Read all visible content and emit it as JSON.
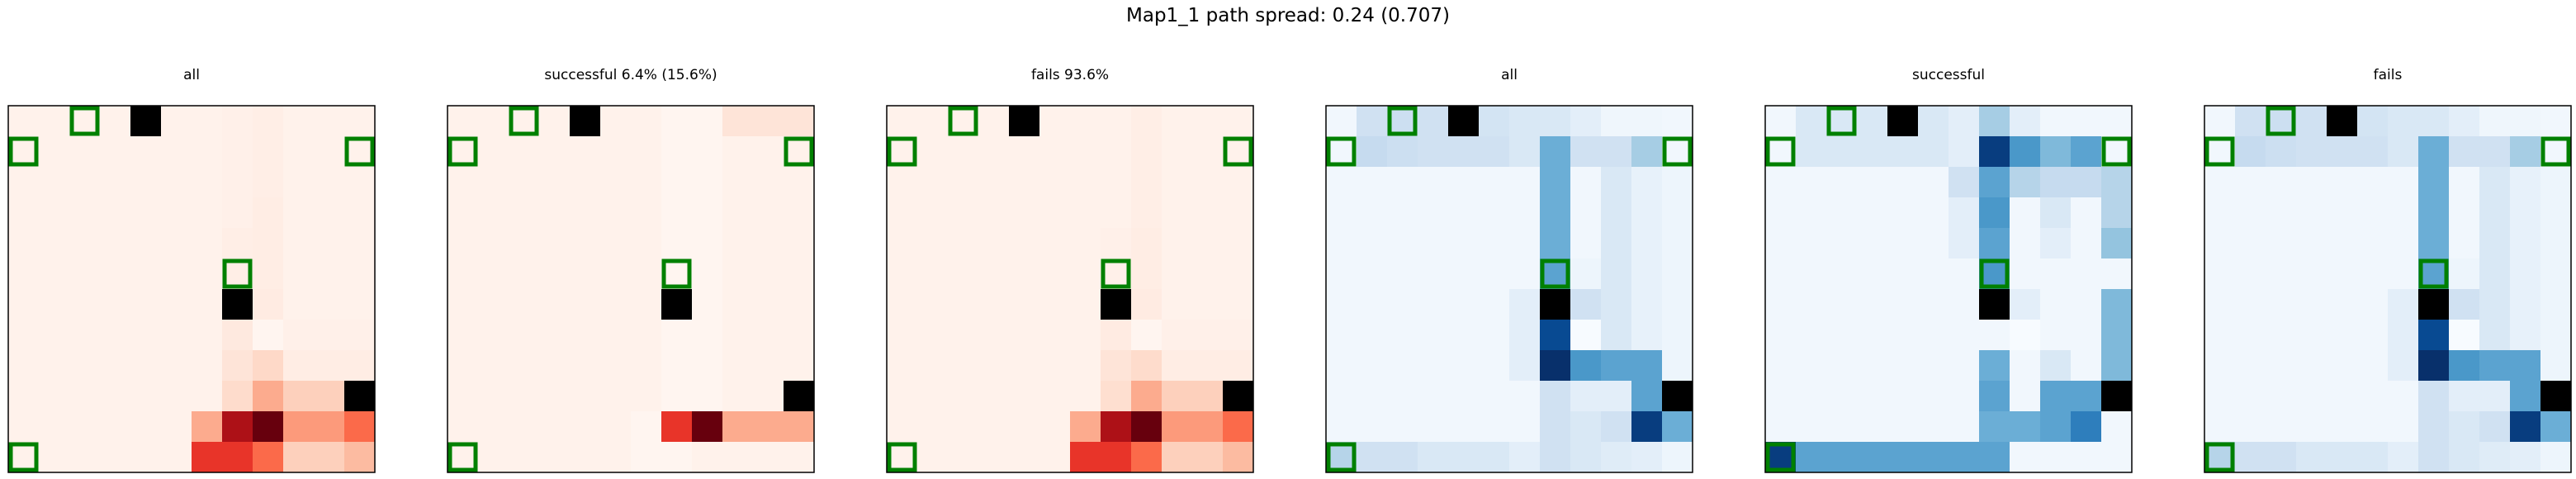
{
  "suptitle": "Map1_1 path spread: 0.24 (0.707)",
  "chart_data": {
    "type": "heatmap",
    "grid_size": [
      12,
      12
    ],
    "colors": {
      "wall": "#000000",
      "marker_edge": "#008000",
      "frame": "#000000"
    },
    "walls": [
      [
        0,
        4
      ],
      [
        6,
        7
      ],
      [
        9,
        11
      ]
    ],
    "markers": [
      [
        1,
        0
      ],
      [
        0,
        2
      ],
      [
        11,
        0
      ],
      [
        1,
        11
      ],
      [
        5,
        7
      ]
    ],
    "panels": [
      {
        "title": "all",
        "colormap": "Reds",
        "values": [
          [
            0.02,
            0.02,
            0.02,
            0.02,
            0.02,
            0.02,
            0.02,
            0.03,
            0.04,
            0.02,
            0.02,
            0.02
          ],
          [
            0.02,
            0.02,
            0.02,
            0.02,
            0.02,
            0.02,
            0.02,
            0.03,
            0.04,
            0.02,
            0.02,
            0.02
          ],
          [
            0.02,
            0.02,
            0.02,
            0.02,
            0.02,
            0.02,
            0.02,
            0.03,
            0.04,
            0.02,
            0.02,
            0.02
          ],
          [
            0.02,
            0.02,
            0.02,
            0.02,
            0.02,
            0.02,
            0.02,
            0.03,
            0.05,
            0.02,
            0.02,
            0.02
          ],
          [
            0.02,
            0.02,
            0.02,
            0.02,
            0.02,
            0.02,
            0.02,
            0.04,
            0.05,
            0.02,
            0.02,
            0.02
          ],
          [
            0.02,
            0.02,
            0.02,
            0.02,
            0.02,
            0.02,
            0.02,
            0.04,
            0.05,
            0.02,
            0.02,
            0.02
          ],
          [
            0.02,
            0.02,
            0.02,
            0.02,
            0.02,
            0.02,
            0.02,
            0.05,
            0.06,
            0.02,
            0.02,
            0.02
          ],
          [
            0.02,
            0.02,
            0.02,
            0.02,
            0.02,
            0.02,
            0.02,
            0.07,
            0.0,
            0.03,
            0.03,
            0.03
          ],
          [
            0.02,
            0.02,
            0.02,
            0.02,
            0.02,
            0.02,
            0.02,
            0.1,
            0.15,
            0.05,
            0.05,
            0.05
          ],
          [
            0.02,
            0.02,
            0.02,
            0.02,
            0.02,
            0.02,
            0.02,
            0.14,
            0.3,
            0.18,
            0.18,
            0.25
          ],
          [
            0.02,
            0.02,
            0.02,
            0.02,
            0.02,
            0.02,
            0.3,
            0.85,
            1.0,
            0.35,
            0.35,
            0.5
          ],
          [
            0.02,
            0.02,
            0.02,
            0.02,
            0.02,
            0.02,
            0.65,
            0.65,
            0.5,
            0.18,
            0.18,
            0.25
          ]
        ]
      },
      {
        "title": "successful 6.4% (15.6%)",
        "colormap": "Reds",
        "values": [
          [
            0.02,
            0.02,
            0.02,
            0.02,
            0.02,
            0.02,
            0.02,
            0.0,
            0.0,
            0.1,
            0.1,
            0.1
          ],
          [
            0.02,
            0.02,
            0.02,
            0.02,
            0.02,
            0.02,
            0.02,
            0.0,
            0.0,
            0.02,
            0.02,
            0.02
          ],
          [
            0.02,
            0.02,
            0.02,
            0.02,
            0.02,
            0.02,
            0.02,
            0.0,
            0.0,
            0.02,
            0.02,
            0.02
          ],
          [
            0.02,
            0.02,
            0.02,
            0.02,
            0.02,
            0.02,
            0.02,
            0.0,
            0.0,
            0.02,
            0.02,
            0.02
          ],
          [
            0.02,
            0.02,
            0.02,
            0.02,
            0.02,
            0.02,
            0.02,
            0.0,
            0.0,
            0.02,
            0.02,
            0.02
          ],
          [
            0.02,
            0.02,
            0.02,
            0.02,
            0.02,
            0.02,
            0.02,
            0.0,
            0.0,
            0.02,
            0.02,
            0.02
          ],
          [
            0.02,
            0.02,
            0.02,
            0.02,
            0.02,
            0.02,
            0.02,
            0.0,
            0.0,
            0.02,
            0.02,
            0.02
          ],
          [
            0.02,
            0.02,
            0.02,
            0.02,
            0.02,
            0.02,
            0.02,
            0.0,
            0.0,
            0.02,
            0.02,
            0.02
          ],
          [
            0.02,
            0.02,
            0.02,
            0.02,
            0.02,
            0.02,
            0.02,
            0.0,
            0.0,
            0.02,
            0.02,
            0.02
          ],
          [
            0.02,
            0.02,
            0.02,
            0.02,
            0.02,
            0.02,
            0.02,
            0.0,
            0.0,
            0.02,
            0.02,
            0.02
          ],
          [
            0.02,
            0.02,
            0.02,
            0.02,
            0.02,
            0.02,
            0.0,
            0.65,
            1.0,
            0.3,
            0.3,
            0.3
          ],
          [
            0.02,
            0.02,
            0.02,
            0.02,
            0.02,
            0.02,
            0.0,
            0.0,
            0.02,
            0.02,
            0.02,
            0.02
          ]
        ]
      },
      {
        "title": "fails 93.6%",
        "colormap": "Reds",
        "values": [
          [
            0.02,
            0.02,
            0.02,
            0.02,
            0.02,
            0.02,
            0.02,
            0.02,
            0.04,
            0.02,
            0.02,
            0.02
          ],
          [
            0.02,
            0.02,
            0.02,
            0.02,
            0.02,
            0.02,
            0.02,
            0.02,
            0.04,
            0.02,
            0.02,
            0.02
          ],
          [
            0.02,
            0.02,
            0.02,
            0.02,
            0.02,
            0.02,
            0.02,
            0.02,
            0.04,
            0.02,
            0.02,
            0.02
          ],
          [
            0.02,
            0.02,
            0.02,
            0.02,
            0.02,
            0.02,
            0.02,
            0.02,
            0.04,
            0.02,
            0.02,
            0.02
          ],
          [
            0.02,
            0.02,
            0.02,
            0.02,
            0.02,
            0.02,
            0.02,
            0.03,
            0.05,
            0.02,
            0.02,
            0.02
          ],
          [
            0.02,
            0.02,
            0.02,
            0.02,
            0.02,
            0.02,
            0.02,
            0.03,
            0.05,
            0.02,
            0.02,
            0.02
          ],
          [
            0.02,
            0.02,
            0.02,
            0.02,
            0.02,
            0.02,
            0.02,
            0.05,
            0.06,
            0.02,
            0.02,
            0.02
          ],
          [
            0.02,
            0.02,
            0.02,
            0.02,
            0.02,
            0.02,
            0.02,
            0.06,
            0.0,
            0.03,
            0.03,
            0.03
          ],
          [
            0.02,
            0.02,
            0.02,
            0.02,
            0.02,
            0.02,
            0.02,
            0.1,
            0.14,
            0.05,
            0.05,
            0.05
          ],
          [
            0.02,
            0.02,
            0.02,
            0.02,
            0.02,
            0.02,
            0.02,
            0.13,
            0.3,
            0.18,
            0.18,
            0.25
          ],
          [
            0.02,
            0.02,
            0.02,
            0.02,
            0.02,
            0.02,
            0.3,
            0.85,
            1.0,
            0.35,
            0.35,
            0.5
          ],
          [
            0.02,
            0.02,
            0.02,
            0.02,
            0.02,
            0.02,
            0.65,
            0.65,
            0.5,
            0.18,
            0.18,
            0.25
          ]
        ]
      },
      {
        "title": "all",
        "colormap": "Blues",
        "values": [
          [
            0.03,
            0.2,
            0.22,
            0.2,
            0.18,
            0.18,
            0.15,
            0.15,
            0.1,
            0.04,
            0.04,
            0.03
          ],
          [
            0.03,
            0.25,
            0.22,
            0.2,
            0.2,
            0.2,
            0.15,
            0.5,
            0.2,
            0.2,
            0.35,
            0.03
          ],
          [
            0.03,
            0.03,
            0.03,
            0.03,
            0.03,
            0.03,
            0.03,
            0.5,
            0.03,
            0.15,
            0.08,
            0.05
          ],
          [
            0.03,
            0.03,
            0.03,
            0.03,
            0.03,
            0.03,
            0.03,
            0.5,
            0.03,
            0.15,
            0.08,
            0.05
          ],
          [
            0.03,
            0.03,
            0.03,
            0.03,
            0.03,
            0.03,
            0.03,
            0.5,
            0.03,
            0.15,
            0.08,
            0.05
          ],
          [
            0.03,
            0.03,
            0.03,
            0.03,
            0.03,
            0.03,
            0.03,
            0.55,
            0.05,
            0.15,
            0.08,
            0.05
          ],
          [
            0.03,
            0.03,
            0.03,
            0.03,
            0.03,
            0.03,
            0.1,
            0.85,
            0.2,
            0.15,
            0.08,
            0.05
          ],
          [
            0.03,
            0.03,
            0.03,
            0.03,
            0.03,
            0.03,
            0.1,
            0.9,
            0.0,
            0.15,
            0.08,
            0.05
          ],
          [
            0.03,
            0.03,
            0.03,
            0.03,
            0.03,
            0.03,
            0.1,
            1.0,
            0.6,
            0.55,
            0.55,
            0.05
          ],
          [
            0.03,
            0.03,
            0.03,
            0.03,
            0.03,
            0.03,
            0.03,
            0.2,
            0.1,
            0.1,
            0.55,
            0.15
          ],
          [
            0.03,
            0.03,
            0.03,
            0.03,
            0.03,
            0.03,
            0.03,
            0.2,
            0.15,
            0.2,
            0.95,
            0.5
          ],
          [
            0.3,
            0.2,
            0.2,
            0.15,
            0.15,
            0.15,
            0.1,
            0.2,
            0.15,
            0.12,
            0.1,
            0.05
          ]
        ]
      },
      {
        "title": "successful",
        "colormap": "Blues",
        "values": [
          [
            0.03,
            0.15,
            0.15,
            0.15,
            0.15,
            0.15,
            0.1,
            0.35,
            0.1,
            0.03,
            0.03,
            0.03
          ],
          [
            0.03,
            0.15,
            0.15,
            0.15,
            0.15,
            0.15,
            0.1,
            0.95,
            0.6,
            0.45,
            0.55,
            0.03
          ],
          [
            0.03,
            0.03,
            0.03,
            0.03,
            0.03,
            0.03,
            0.2,
            0.55,
            0.3,
            0.25,
            0.25,
            0.3
          ],
          [
            0.03,
            0.03,
            0.03,
            0.03,
            0.03,
            0.03,
            0.1,
            0.6,
            0.03,
            0.15,
            0.03,
            0.3
          ],
          [
            0.03,
            0.03,
            0.03,
            0.03,
            0.03,
            0.03,
            0.1,
            0.55,
            0.03,
            0.1,
            0.03,
            0.4
          ],
          [
            0.03,
            0.03,
            0.03,
            0.03,
            0.03,
            0.03,
            0.03,
            0.6,
            0.03,
            0.03,
            0.03,
            0.03
          ],
          [
            0.03,
            0.03,
            0.03,
            0.03,
            0.03,
            0.03,
            0.03,
            0.9,
            0.1,
            0.03,
            0.03,
            0.45
          ],
          [
            0.03,
            0.03,
            0.03,
            0.03,
            0.03,
            0.03,
            0.03,
            0.03,
            0.0,
            0.03,
            0.03,
            0.45
          ],
          [
            0.03,
            0.03,
            0.03,
            0.03,
            0.03,
            0.03,
            0.03,
            0.5,
            0.03,
            0.15,
            0.03,
            0.45
          ],
          [
            0.03,
            0.03,
            0.03,
            0.03,
            0.03,
            0.03,
            0.03,
            0.55,
            0.03,
            0.55,
            0.55,
            0.45
          ],
          [
            0.03,
            0.03,
            0.03,
            0.03,
            0.03,
            0.03,
            0.03,
            0.5,
            0.5,
            0.55,
            0.7,
            0.03
          ],
          [
            0.95,
            0.55,
            0.55,
            0.55,
            0.55,
            0.55,
            0.55,
            0.55,
            0.03,
            0.03,
            0.03,
            0.03
          ]
        ]
      },
      {
        "title": "fails",
        "colormap": "Blues",
        "values": [
          [
            0.03,
            0.2,
            0.22,
            0.2,
            0.18,
            0.18,
            0.15,
            0.15,
            0.1,
            0.04,
            0.04,
            0.03
          ],
          [
            0.03,
            0.25,
            0.22,
            0.2,
            0.2,
            0.2,
            0.15,
            0.5,
            0.2,
            0.2,
            0.35,
            0.03
          ],
          [
            0.03,
            0.03,
            0.03,
            0.03,
            0.03,
            0.03,
            0.03,
            0.5,
            0.03,
            0.15,
            0.08,
            0.05
          ],
          [
            0.03,
            0.03,
            0.03,
            0.03,
            0.03,
            0.03,
            0.03,
            0.5,
            0.03,
            0.15,
            0.08,
            0.05
          ],
          [
            0.03,
            0.03,
            0.03,
            0.03,
            0.03,
            0.03,
            0.03,
            0.5,
            0.03,
            0.15,
            0.08,
            0.05
          ],
          [
            0.03,
            0.03,
            0.03,
            0.03,
            0.03,
            0.03,
            0.03,
            0.55,
            0.05,
            0.15,
            0.08,
            0.05
          ],
          [
            0.03,
            0.03,
            0.03,
            0.03,
            0.03,
            0.03,
            0.1,
            0.85,
            0.2,
            0.15,
            0.08,
            0.05
          ],
          [
            0.03,
            0.03,
            0.03,
            0.03,
            0.03,
            0.03,
            0.1,
            0.9,
            0.0,
            0.15,
            0.08,
            0.05
          ],
          [
            0.03,
            0.03,
            0.03,
            0.03,
            0.03,
            0.03,
            0.1,
            1.0,
            0.6,
            0.55,
            0.55,
            0.05
          ],
          [
            0.03,
            0.03,
            0.03,
            0.03,
            0.03,
            0.03,
            0.03,
            0.2,
            0.1,
            0.1,
            0.55,
            0.15
          ],
          [
            0.03,
            0.03,
            0.03,
            0.03,
            0.03,
            0.03,
            0.03,
            0.2,
            0.15,
            0.2,
            0.95,
            0.5
          ],
          [
            0.3,
            0.2,
            0.2,
            0.15,
            0.15,
            0.15,
            0.1,
            0.2,
            0.15,
            0.12,
            0.1,
            0.05
          ]
        ]
      }
    ]
  }
}
